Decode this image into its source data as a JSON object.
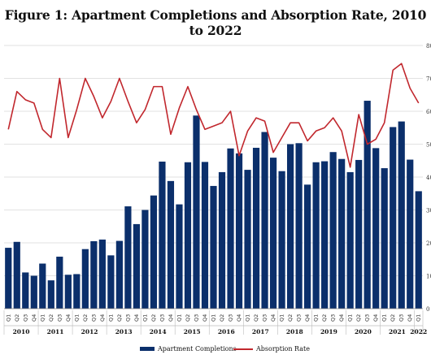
{
  "chart_data": {
    "type": "bar+line",
    "title": "Figure 1: Apartment Completions and Absorption Rate, 2010 to 2022",
    "quarters": [
      "Q1",
      "Q2",
      "Q3",
      "Q4",
      "Q1",
      "Q2",
      "Q3",
      "Q4",
      "Q1",
      "Q2",
      "Q3",
      "Q4",
      "Q1",
      "Q2",
      "Q3",
      "Q4",
      "Q1",
      "Q2",
      "Q3",
      "Q4",
      "Q1",
      "Q2",
      "Q3",
      "Q4",
      "Q1",
      "Q2",
      "Q3",
      "Q4",
      "Q1",
      "Q2",
      "Q3",
      "Q4",
      "Q1",
      "Q2",
      "Q3",
      "Q4",
      "Q1",
      "Q2",
      "Q3",
      "Q4",
      "Q1",
      "Q2",
      "Q3",
      "Q4",
      "Q1",
      "Q2",
      "Q3",
      "Q4",
      "Q1"
    ],
    "years": [
      {
        "label": "2010",
        "start": 0,
        "count": 4
      },
      {
        "label": "2011",
        "start": 4,
        "count": 4
      },
      {
        "label": "2012",
        "start": 8,
        "count": 4
      },
      {
        "label": "2013",
        "start": 12,
        "count": 4
      },
      {
        "label": "2014",
        "start": 16,
        "count": 4
      },
      {
        "label": "2015",
        "start": 20,
        "count": 4
      },
      {
        "label": "2016",
        "start": 24,
        "count": 4
      },
      {
        "label": "2017",
        "start": 28,
        "count": 4
      },
      {
        "label": "2018",
        "start": 32,
        "count": 4
      },
      {
        "label": "2019",
        "start": 36,
        "count": 4
      },
      {
        "label": "2020",
        "start": 40,
        "count": 4
      },
      {
        "label": "2021",
        "start": 44,
        "count": 4
      },
      {
        "label": "2022",
        "start": 48,
        "count": 1
      }
    ],
    "series": [
      {
        "name": "Apartment Completions",
        "kind": "bar",
        "color": "#0b2f6b",
        "values": [
          18.5,
          20.3,
          11,
          10,
          13.7,
          8.6,
          15.8,
          10.3,
          10.5,
          18.1,
          20.5,
          21,
          16.2,
          20.6,
          31.1,
          25.7,
          30,
          34.4,
          44.7,
          38.8,
          31.7,
          44.5,
          58.7,
          44.6,
          37.3,
          41.5,
          48.7,
          47.2,
          42.2,
          48.9,
          53.7,
          45.9,
          41.8,
          50,
          50.3,
          37.7,
          44.5,
          44.8,
          47.6,
          45.5,
          41.5,
          45.2,
          63.2,
          48.8,
          42.7,
          55.2,
          56.9,
          45.3,
          35.7
        ]
      },
      {
        "name": "Absorption Rate",
        "kind": "line",
        "color": "#c1272d",
        "values": [
          54.5,
          66,
          63.5,
          62.5,
          54.5,
          52,
          70,
          52,
          60.5,
          70,
          64.5,
          58,
          63,
          70,
          63,
          56.5,
          60.5,
          67.5,
          67.5,
          53,
          61,
          67.5,
          60.5,
          54.5,
          55.5,
          56.5,
          60,
          46.5,
          54,
          58,
          57,
          47.5,
          52,
          56.5,
          56.5,
          51,
          54,
          55,
          58,
          54,
          43,
          59,
          50,
          51.5,
          56.5,
          72.5,
          74.5,
          67,
          62.5
        ]
      }
    ],
    "y_ticks": [
      "0",
      "10",
      "20",
      "30",
      "40",
      "50",
      "60",
      "70",
      "80"
    ],
    "ylim": [
      0,
      80
    ],
    "grid": true,
    "legend": {
      "placement": "bottom-center"
    }
  },
  "legend": {
    "bar_label": "Apartment Completions",
    "line_label": "Absorption Rate"
  }
}
